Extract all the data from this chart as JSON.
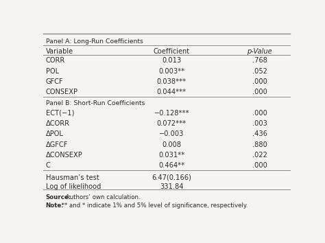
{
  "panel_a_title": "Panel A: Long-Run Coefficients",
  "panel_b_title": "Panel B: Short-Run Coefficients",
  "header": [
    "Variable",
    "Coefficient",
    "p-Value"
  ],
  "panel_a_rows": [
    [
      "CORR",
      "0.013",
      ".768"
    ],
    [
      "POL",
      "0.003**",
      ".052"
    ],
    [
      "GFCF",
      "0.038***",
      ".000"
    ],
    [
      "CONSEXP",
      "0.044***",
      ".000"
    ]
  ],
  "panel_b_rows": [
    [
      "ECT(−1)",
      "−0.128***",
      ".000"
    ],
    [
      "ΔCORR",
      "0.072***",
      ".003"
    ],
    [
      "ΔPOL",
      "−0.003",
      ".436"
    ],
    [
      "ΔGFCF",
      "0.008",
      ".880"
    ],
    [
      "ΔCONSEXP",
      "0.031**",
      ".022"
    ],
    [
      "C",
      "0.464**",
      ".000"
    ]
  ],
  "stat_rows": [
    [
      "Hausman’s test",
      "6.47(0.166)",
      ""
    ],
    [
      "Log of likelihood",
      "331.84",
      ""
    ]
  ],
  "source_bold": "Source:",
  "source_rest": " Authors’ own calculation.",
  "note_bold": "Note:",
  "note_rest": " ** and * indicate 1% and 5% level of significance, respectively.",
  "bg_color": "#f5f4f0",
  "text_color": "#2a2a2a",
  "line_color": "#888888"
}
